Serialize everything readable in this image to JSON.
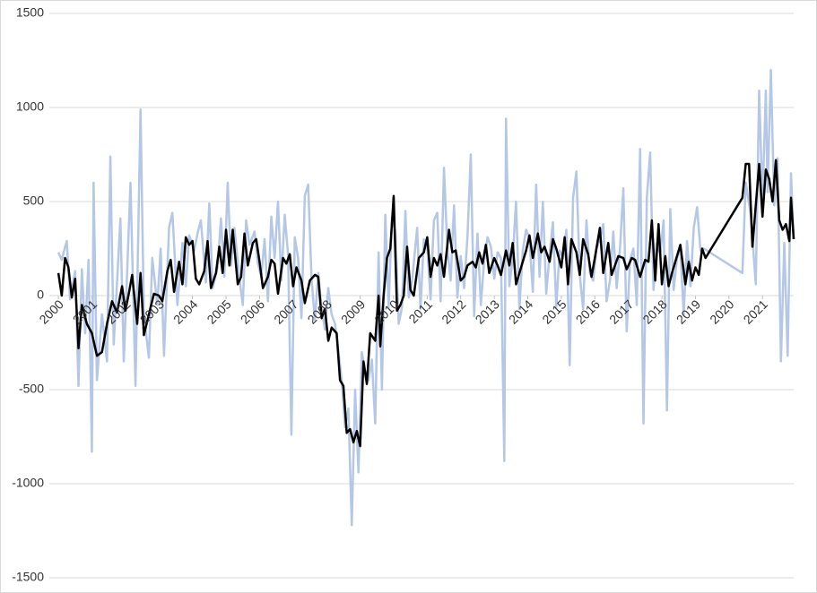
{
  "chart_data": {
    "type": "line",
    "xlim": [
      1999.73,
      2021.93
    ],
    "xticks": [
      2000,
      2001,
      2002,
      2003,
      2004,
      2005,
      2006,
      2007,
      2008,
      2009,
      2010,
      2011,
      2012,
      2013,
      2014,
      2015,
      2016,
      2017,
      2018,
      2019,
      2020,
      2021
    ],
    "ylim": [
      -1500,
      1500
    ],
    "yticks": [
      -1500,
      -1000,
      -500,
      0,
      500,
      1000,
      1500
    ],
    "grid": true,
    "series": [
      {
        "color": "#b4c7e7",
        "x": [
          2000.0,
          2000.1,
          2000.25,
          2000.35,
          2000.5,
          2000.6,
          2000.7,
          2000.8,
          2000.9,
          2001.0,
          2001.05,
          2001.15,
          2001.3,
          2001.45,
          2001.55,
          2001.65,
          2001.75,
          2001.85,
          2001.95,
          2002.05,
          2002.15,
          2002.3,
          2002.45,
          2002.55,
          2002.7,
          2002.8,
          2002.95,
          2003.05,
          2003.15,
          2003.3,
          2003.4,
          2003.55,
          2003.7,
          2003.8,
          2003.9,
          2004.05,
          2004.15,
          2004.25,
          2004.4,
          2004.5,
          2004.6,
          2004.75,
          2004.85,
          2004.95,
          2005.05,
          2005.15,
          2005.25,
          2005.4,
          2005.5,
          2005.6,
          2005.7,
          2005.85,
          2005.95,
          2006.05,
          2006.15,
          2006.25,
          2006.35,
          2006.45,
          2006.55,
          2006.65,
          2006.75,
          2006.85,
          2006.95,
          2007.05,
          2007.15,
          2007.25,
          2007.35,
          2007.45,
          2007.55,
          2007.65,
          2007.75,
          2007.85,
          2007.95,
          2008.05,
          2008.15,
          2008.25,
          2008.35,
          2008.45,
          2008.55,
          2008.65,
          2008.75,
          2008.85,
          2008.95,
          2009.05,
          2009.15,
          2009.25,
          2009.35,
          2009.45,
          2009.55,
          2009.65,
          2009.75,
          2009.85,
          2009.95,
          2010.05,
          2010.15,
          2010.25,
          2010.35,
          2010.45,
          2010.55,
          2010.7,
          2010.8,
          2010.9,
          2011.0,
          2011.1,
          2011.2,
          2011.3,
          2011.4,
          2011.5,
          2011.6,
          2011.7,
          2011.8,
          2011.9,
          2012.0,
          2012.1,
          2012.2,
          2012.3,
          2012.4,
          2012.5,
          2012.6,
          2012.7,
          2012.8,
          2012.9,
          2013.0,
          2013.1,
          2013.2,
          2013.3,
          2013.35,
          2013.45,
          2013.55,
          2013.65,
          2013.75,
          2013.85,
          2013.95,
          2014.05,
          2014.15,
          2014.25,
          2014.35,
          2014.45,
          2014.55,
          2014.65,
          2014.75,
          2014.85,
          2014.95,
          2015.05,
          2015.15,
          2015.25,
          2015.35,
          2015.45,
          2015.55,
          2015.65,
          2015.75,
          2015.85,
          2015.95,
          2016.05,
          2016.15,
          2016.25,
          2016.35,
          2016.45,
          2016.55,
          2016.65,
          2016.75,
          2016.85,
          2016.95,
          2017.05,
          2017.15,
          2017.25,
          2017.35,
          2017.45,
          2017.55,
          2017.65,
          2017.75,
          2017.85,
          2017.95,
          2018.05,
          2018.15,
          2018.25,
          2018.35,
          2018.45,
          2018.55,
          2018.65,
          2018.75,
          2018.85,
          2018.95,
          2019.05,
          2019.15,
          2019.25,
          2020.4,
          2020.5,
          2020.65,
          2020.8,
          2020.9,
          2021.0,
          2021.1,
          2021.15,
          2021.25,
          2021.35,
          2021.45,
          2021.55,
          2021.65,
          2021.75,
          2021.85,
          2021.93
        ],
        "values": [
          230,
          190,
          290,
          -20,
          130,
          -480,
          140,
          -200,
          190,
          -830,
          600,
          -450,
          -100,
          -350,
          740,
          -260,
          70,
          410,
          -350,
          120,
          600,
          -480,
          990,
          -100,
          -330,
          200,
          -50,
          250,
          -320,
          360,
          440,
          -50,
          280,
          50,
          320,
          240,
          330,
          400,
          70,
          490,
          40,
          150,
          410,
          100,
          600,
          160,
          360,
          90,
          -50,
          400,
          270,
          340,
          170,
          100,
          300,
          -30,
          420,
          200,
          500,
          80,
          430,
          220,
          -740,
          310,
          200,
          -120,
          530,
          590,
          90,
          -130,
          120,
          -60,
          -180,
          40,
          -100,
          -150,
          -290,
          -450,
          -700,
          -600,
          -1220,
          -500,
          -940,
          -300,
          -400,
          -450,
          -340,
          -680,
          230,
          -500,
          430,
          -60,
          420,
          340,
          -150,
          -60,
          450,
          -10,
          80,
          360,
          -70,
          300,
          270,
          -20,
          400,
          440,
          -30,
          680,
          250,
          80,
          480,
          -10,
          210,
          40,
          310,
          750,
          -110,
          330,
          -50,
          190,
          310,
          260,
          90,
          230,
          200,
          -880,
          940,
          50,
          200,
          500,
          -70,
          240,
          350,
          300,
          20,
          590,
          100,
          500,
          10,
          220,
          390,
          -60,
          240,
          200,
          350,
          -370,
          520,
          660,
          110,
          -70,
          400,
          120,
          80,
          250,
          300,
          380,
          -30,
          80,
          340,
          40,
          250,
          570,
          -190,
          190,
          250,
          -50,
          780,
          -680,
          520,
          760,
          30,
          280,
          220,
          400,
          -610,
          460,
          30,
          200,
          250,
          -100,
          290,
          50,
          360,
          470,
          240,
          250,
          120,
          600,
          430,
          60,
          1090,
          500,
          1090,
          550,
          1200,
          480,
          730,
          -350,
          280,
          -320,
          650,
          300
        ]
      },
      {
        "color": "#000000",
        "x": [
          2000.0,
          2000.1,
          2000.2,
          2000.3,
          2000.4,
          2000.5,
          2000.6,
          2000.7,
          2000.85,
          2001.0,
          2001.15,
          2001.3,
          2001.45,
          2001.6,
          2001.75,
          2001.9,
          2002.0,
          2002.1,
          2002.2,
          2002.35,
          2002.45,
          2002.55,
          2002.7,
          2002.85,
          2003.0,
          2003.1,
          2003.25,
          2003.35,
          2003.45,
          2003.6,
          2003.7,
          2003.8,
          2003.9,
          2004.0,
          2004.1,
          2004.2,
          2004.35,
          2004.45,
          2004.55,
          2004.7,
          2004.8,
          2004.9,
          2005.0,
          2005.1,
          2005.2,
          2005.35,
          2005.45,
          2005.55,
          2005.65,
          2005.8,
          2005.9,
          2006.0,
          2006.1,
          2006.25,
          2006.35,
          2006.45,
          2006.55,
          2006.7,
          2006.8,
          2006.9,
          2007.0,
          2007.1,
          2007.25,
          2007.35,
          2007.5,
          2007.65,
          2007.75,
          2007.85,
          2007.95,
          2008.05,
          2008.15,
          2008.3,
          2008.4,
          2008.5,
          2008.6,
          2008.7,
          2008.8,
          2008.9,
          2009.0,
          2009.1,
          2009.2,
          2009.3,
          2009.45,
          2009.55,
          2009.6,
          2009.7,
          2009.8,
          2009.9,
          2010.0,
          2010.1,
          2010.2,
          2010.3,
          2010.4,
          2010.5,
          2010.6,
          2010.75,
          2010.9,
          2011.0,
          2011.1,
          2011.2,
          2011.3,
          2011.4,
          2011.5,
          2011.65,
          2011.75,
          2011.85,
          2012.0,
          2012.1,
          2012.2,
          2012.35,
          2012.45,
          2012.55,
          2012.65,
          2012.75,
          2012.85,
          2013.0,
          2013.1,
          2013.2,
          2013.35,
          2013.45,
          2013.55,
          2013.65,
          2013.8,
          2013.95,
          2014.05,
          2014.15,
          2014.3,
          2014.4,
          2014.5,
          2014.65,
          2014.75,
          2014.85,
          2015.0,
          2015.1,
          2015.2,
          2015.3,
          2015.45,
          2015.55,
          2015.65,
          2015.8,
          2015.9,
          2016.0,
          2016.15,
          2016.25,
          2016.4,
          2016.5,
          2016.6,
          2016.7,
          2016.85,
          2016.95,
          2017.1,
          2017.2,
          2017.35,
          2017.5,
          2017.6,
          2017.7,
          2017.8,
          2017.9,
          2018.0,
          2018.1,
          2018.2,
          2018.3,
          2018.45,
          2018.55,
          2018.7,
          2018.8,
          2018.9,
          2019.0,
          2019.1,
          2019.2,
          2019.3,
          2020.4,
          2020.5,
          2020.6,
          2020.7,
          2020.8,
          2020.9,
          2021.0,
          2021.1,
          2021.2,
          2021.3,
          2021.4,
          2021.5,
          2021.6,
          2021.7,
          2021.8,
          2021.85,
          2021.93
        ],
        "values": [
          120,
          0,
          200,
          150,
          -10,
          90,
          -280,
          -50,
          -150,
          -200,
          -320,
          -300,
          -150,
          -30,
          -90,
          50,
          -80,
          10,
          110,
          -150,
          120,
          -210,
          -100,
          10,
          0,
          -30,
          130,
          190,
          20,
          180,
          60,
          310,
          270,
          290,
          90,
          60,
          130,
          290,
          40,
          120,
          260,
          120,
          350,
          160,
          350,
          60,
          100,
          330,
          160,
          280,
          300,
          180,
          40,
          100,
          190,
          170,
          10,
          200,
          170,
          220,
          50,
          150,
          80,
          -40,
          80,
          110,
          100,
          -120,
          -70,
          -240,
          -170,
          -200,
          -450,
          -480,
          -730,
          -710,
          -780,
          -720,
          -800,
          -350,
          -470,
          -200,
          -240,
          0,
          -270,
          0,
          200,
          250,
          530,
          -80,
          -50,
          0,
          260,
          30,
          0,
          200,
          230,
          310,
          100,
          200,
          160,
          220,
          100,
          350,
          230,
          240,
          80,
          100,
          160,
          180,
          150,
          230,
          170,
          270,
          120,
          200,
          160,
          110,
          240,
          160,
          280,
          60,
          150,
          240,
          320,
          200,
          330,
          230,
          260,
          180,
          300,
          250,
          150,
          310,
          60,
          300,
          230,
          110,
          300,
          220,
          100,
          200,
          360,
          120,
          280,
          110,
          160,
          210,
          200,
          140,
          200,
          190,
          100,
          190,
          180,
          400,
          80,
          380,
          60,
          210,
          50,
          120,
          210,
          270,
          60,
          180,
          80,
          150,
          110,
          250,
          200,
          520,
          700,
          700,
          260,
          480,
          700,
          420,
          670,
          620,
          500,
          720,
          400,
          350,
          380,
          290,
          520,
          300
        ]
      }
    ]
  }
}
